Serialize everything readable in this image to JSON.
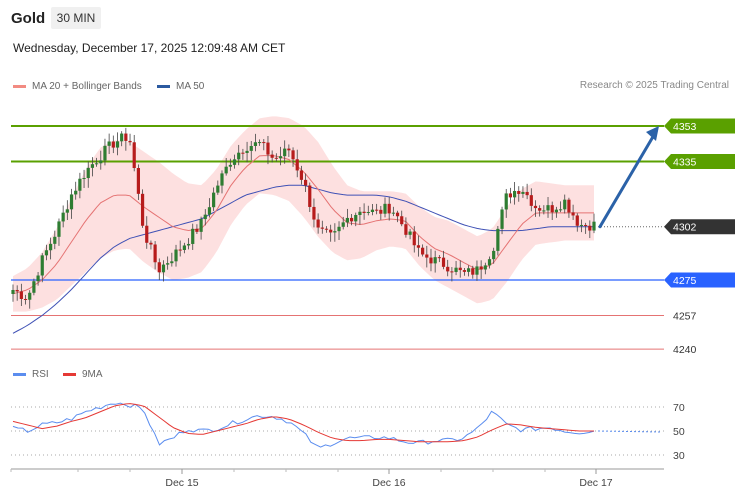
{
  "header": {
    "symbol": "Gold",
    "timeframe": "30 MIN",
    "datetime": "Wednesday, December 17, 2025 12:09:48 AM CET",
    "credit": "Research © 2025 Trading Central"
  },
  "legend": {
    "ma20_label": "MA 20 + Bollinger Bands",
    "ma50_label": "MA 50",
    "rsi_label": "RSI",
    "rsi_ma_label": "9MA"
  },
  "colors": {
    "bullish": "#2e7d32",
    "bearish": "#b71c1c",
    "bollinger_fill": "#fde0e0",
    "ma20": "#e57373",
    "ma50": "#3f51b5",
    "resistance": "#5aa000",
    "pivot": "#2962ff",
    "support": "#e57373",
    "current": "#333333",
    "forecast_arrow": "#2b62a8",
    "rsi": "#5b8def",
    "rsi_ma": "#e53935"
  },
  "chart_data": [
    {
      "type": "candlestick",
      "x_ticks": [
        "Dec 15",
        "Dec 16",
        "Dec 17"
      ],
      "y_range": [
        4230,
        4375
      ],
      "levels": [
        {
          "label": "4353",
          "value": 4353,
          "kind": "resistance"
        },
        {
          "label": "4335",
          "value": 4335,
          "kind": "resistance"
        },
        {
          "label": "4302",
          "value": 4302,
          "kind": "current"
        },
        {
          "label": "4275",
          "value": 4275,
          "kind": "pivot"
        },
        {
          "label": "4257",
          "value": 4257,
          "kind": "support"
        },
        {
          "label": "4240",
          "value": 4240,
          "kind": "support"
        }
      ],
      "forecast": {
        "from": 4302,
        "to": 4353
      },
      "close_anchors": [
        4270,
        4266,
        4285,
        4300,
        4318,
        4330,
        4338,
        4345,
        4348,
        4300,
        4280,
        4287,
        4295,
        4304,
        4322,
        4336,
        4343,
        4344,
        4336,
        4341,
        4325,
        4300,
        4296,
        4306,
        4311,
        4309,
        4312,
        4301,
        4288,
        4285,
        4282,
        4278,
        4280,
        4290,
        4318,
        4322,
        4312,
        4311,
        4315,
        4303,
        4303
      ],
      "ma20_anchors": [
        4268,
        4270,
        4275,
        4283,
        4294,
        4305,
        4314,
        4318,
        4318,
        4312,
        4307,
        4302,
        4300,
        4301,
        4310,
        4323,
        4332,
        4338,
        4338,
        4336,
        4330,
        4321,
        4311,
        4304,
        4303,
        4305,
        4306,
        4305,
        4297,
        4291,
        4288,
        4284,
        4280,
        4283,
        4293,
        4303,
        4309,
        4309,
        4309,
        4309,
        4309
      ],
      "ma50_anchors": [
        4248,
        4252,
        4257,
        4263,
        4270,
        4278,
        4286,
        4292,
        4296,
        4298,
        4300,
        4302,
        4304,
        4306,
        4310,
        4314,
        4318,
        4320,
        4322,
        4323,
        4323,
        4321,
        4319,
        4318,
        4318,
        4318,
        4317,
        4315,
        4312,
        4309,
        4306,
        4303,
        4301,
        4300,
        4300,
        4300,
        4301,
        4302,
        4302,
        4302,
        4302
      ],
      "bb_width_anchors": [
        9,
        11,
        14,
        18,
        22,
        26,
        28,
        28,
        27,
        28,
        28,
        27,
        24,
        22,
        21,
        20,
        19,
        19,
        20,
        21,
        23,
        24,
        22,
        19,
        17,
        15,
        14,
        14,
        15,
        16,
        17,
        17,
        17,
        18,
        19,
        18,
        16,
        15,
        14,
        14,
        14
      ]
    },
    {
      "type": "line",
      "name": "RSI",
      "y_range": [
        20,
        80
      ],
      "y_ticks": [
        70,
        50,
        30
      ],
      "series": [
        {
          "name": "RSI",
          "values": [
            52,
            50,
            55,
            57,
            60,
            66,
            70,
            74,
            72,
            68,
            39,
            44,
            52,
            50,
            52,
            56,
            60,
            63,
            62,
            58,
            48,
            35,
            40,
            44,
            44,
            45,
            44,
            41,
            40,
            42,
            42,
            44,
            52,
            66,
            55,
            51,
            52,
            53,
            50,
            49,
            50
          ]
        },
        {
          "name": "9MA",
          "values": [
            58,
            55,
            52,
            54,
            58,
            61,
            66,
            71,
            73,
            71,
            62,
            53,
            48,
            47,
            50,
            53,
            56,
            60,
            62,
            60,
            55,
            49,
            44,
            42,
            42,
            43,
            43,
            42,
            41,
            41,
            41,
            42,
            45,
            51,
            56,
            55,
            53,
            52,
            51,
            50,
            50
          ]
        }
      ]
    }
  ]
}
